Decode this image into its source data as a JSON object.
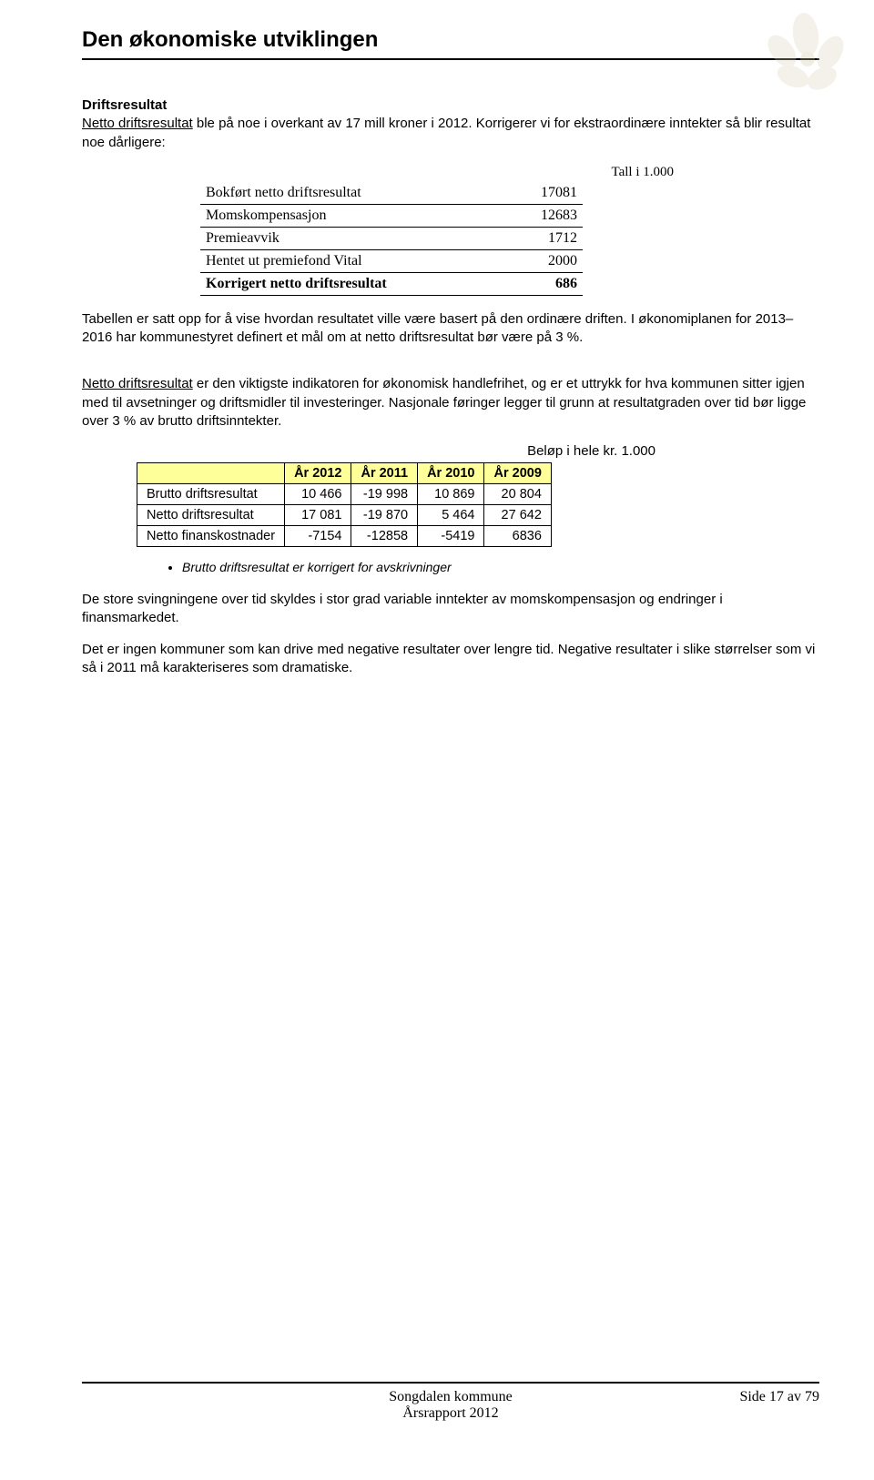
{
  "title": "Den økonomiske utviklingen",
  "sub_heading": "Driftsresultat",
  "intro_underline": "Netto driftsresultat",
  "intro_rest": " ble på noe i overkant av 17 mill kroner i 2012. Korrigerer vi for ekstraordinære inntekter så blir resultat noe dårligere:",
  "calc_caption": "Tall i 1.000",
  "calc": {
    "rows": [
      {
        "label": "Bokført netto driftsresultat",
        "value": "17081",
        "bold": false
      },
      {
        "label": "Momskompensasjon",
        "value": "12683",
        "bold": false
      },
      {
        "label": "Premieavvik",
        "value": "1712",
        "bold": false
      },
      {
        "label": "Hentet ut premiefond Vital",
        "value": "2000",
        "bold": false
      },
      {
        "label": "Korrigert netto driftsresultat",
        "value": "686",
        "bold": true
      }
    ]
  },
  "para2": "Tabellen er satt opp for å vise hvordan resultatet ville være basert på den ordinære driften. I økonomiplanen for 2013–2016 har kommunestyret definert et mål om at netto driftsresultat bør være på 3 %.",
  "para3_underline": "Netto driftsresultat",
  "para3_rest": " er den viktigste indikatoren for økonomisk handlefrihet, og er et uttrykk for hva kommunen sitter igjen med til avsetninger og driftsmidler til investeringer. Nasjonale føringer legger til grunn at resultatgraden over tid bør ligge over 3 % av brutto driftsinntekter.",
  "results_caption": "Beløp i hele kr. 1.000",
  "results": {
    "columns": [
      "",
      "År 2012",
      "År 2011",
      "År 2010",
      "År 2009"
    ],
    "rows": [
      {
        "label": "Brutto driftsresultat",
        "y2012": "10 466",
        "y2011": "-19 998",
        "y2010": "10 869",
        "y2009": "20 804"
      },
      {
        "label": "Netto driftsresultat",
        "y2012": "17 081",
        "y2011": "-19 870",
        "y2010": "5 464",
        "y2009": "27 642"
      },
      {
        "label": "Netto finanskostnader",
        "y2012": "-7154",
        "y2011": "-12858",
        "y2010": "-5419",
        "y2009": "6836"
      }
    ]
  },
  "bullet": "Brutto driftsresultat er korrigert for avskrivninger",
  "para4": "De store svingningene over tid skyldes i stor grad variable inntekter av momskompensasjon og endringer i finansmarkedet.",
  "para5": "Det er ingen kommuner som kan drive med negative resultater over lengre tid. Negative resultater i slike størrelser som vi så i 2011 må karakteriseres som dramatiske.",
  "footer": {
    "left": "",
    "center_line1": "Songdalen kommune",
    "center_line2": "Årsrapport 2012",
    "right": "Side 17 av 79"
  },
  "colors": {
    "header_bg": "#ffff99",
    "border": "#000000",
    "text": "#000000",
    "watermark": "#c8bfa3"
  }
}
